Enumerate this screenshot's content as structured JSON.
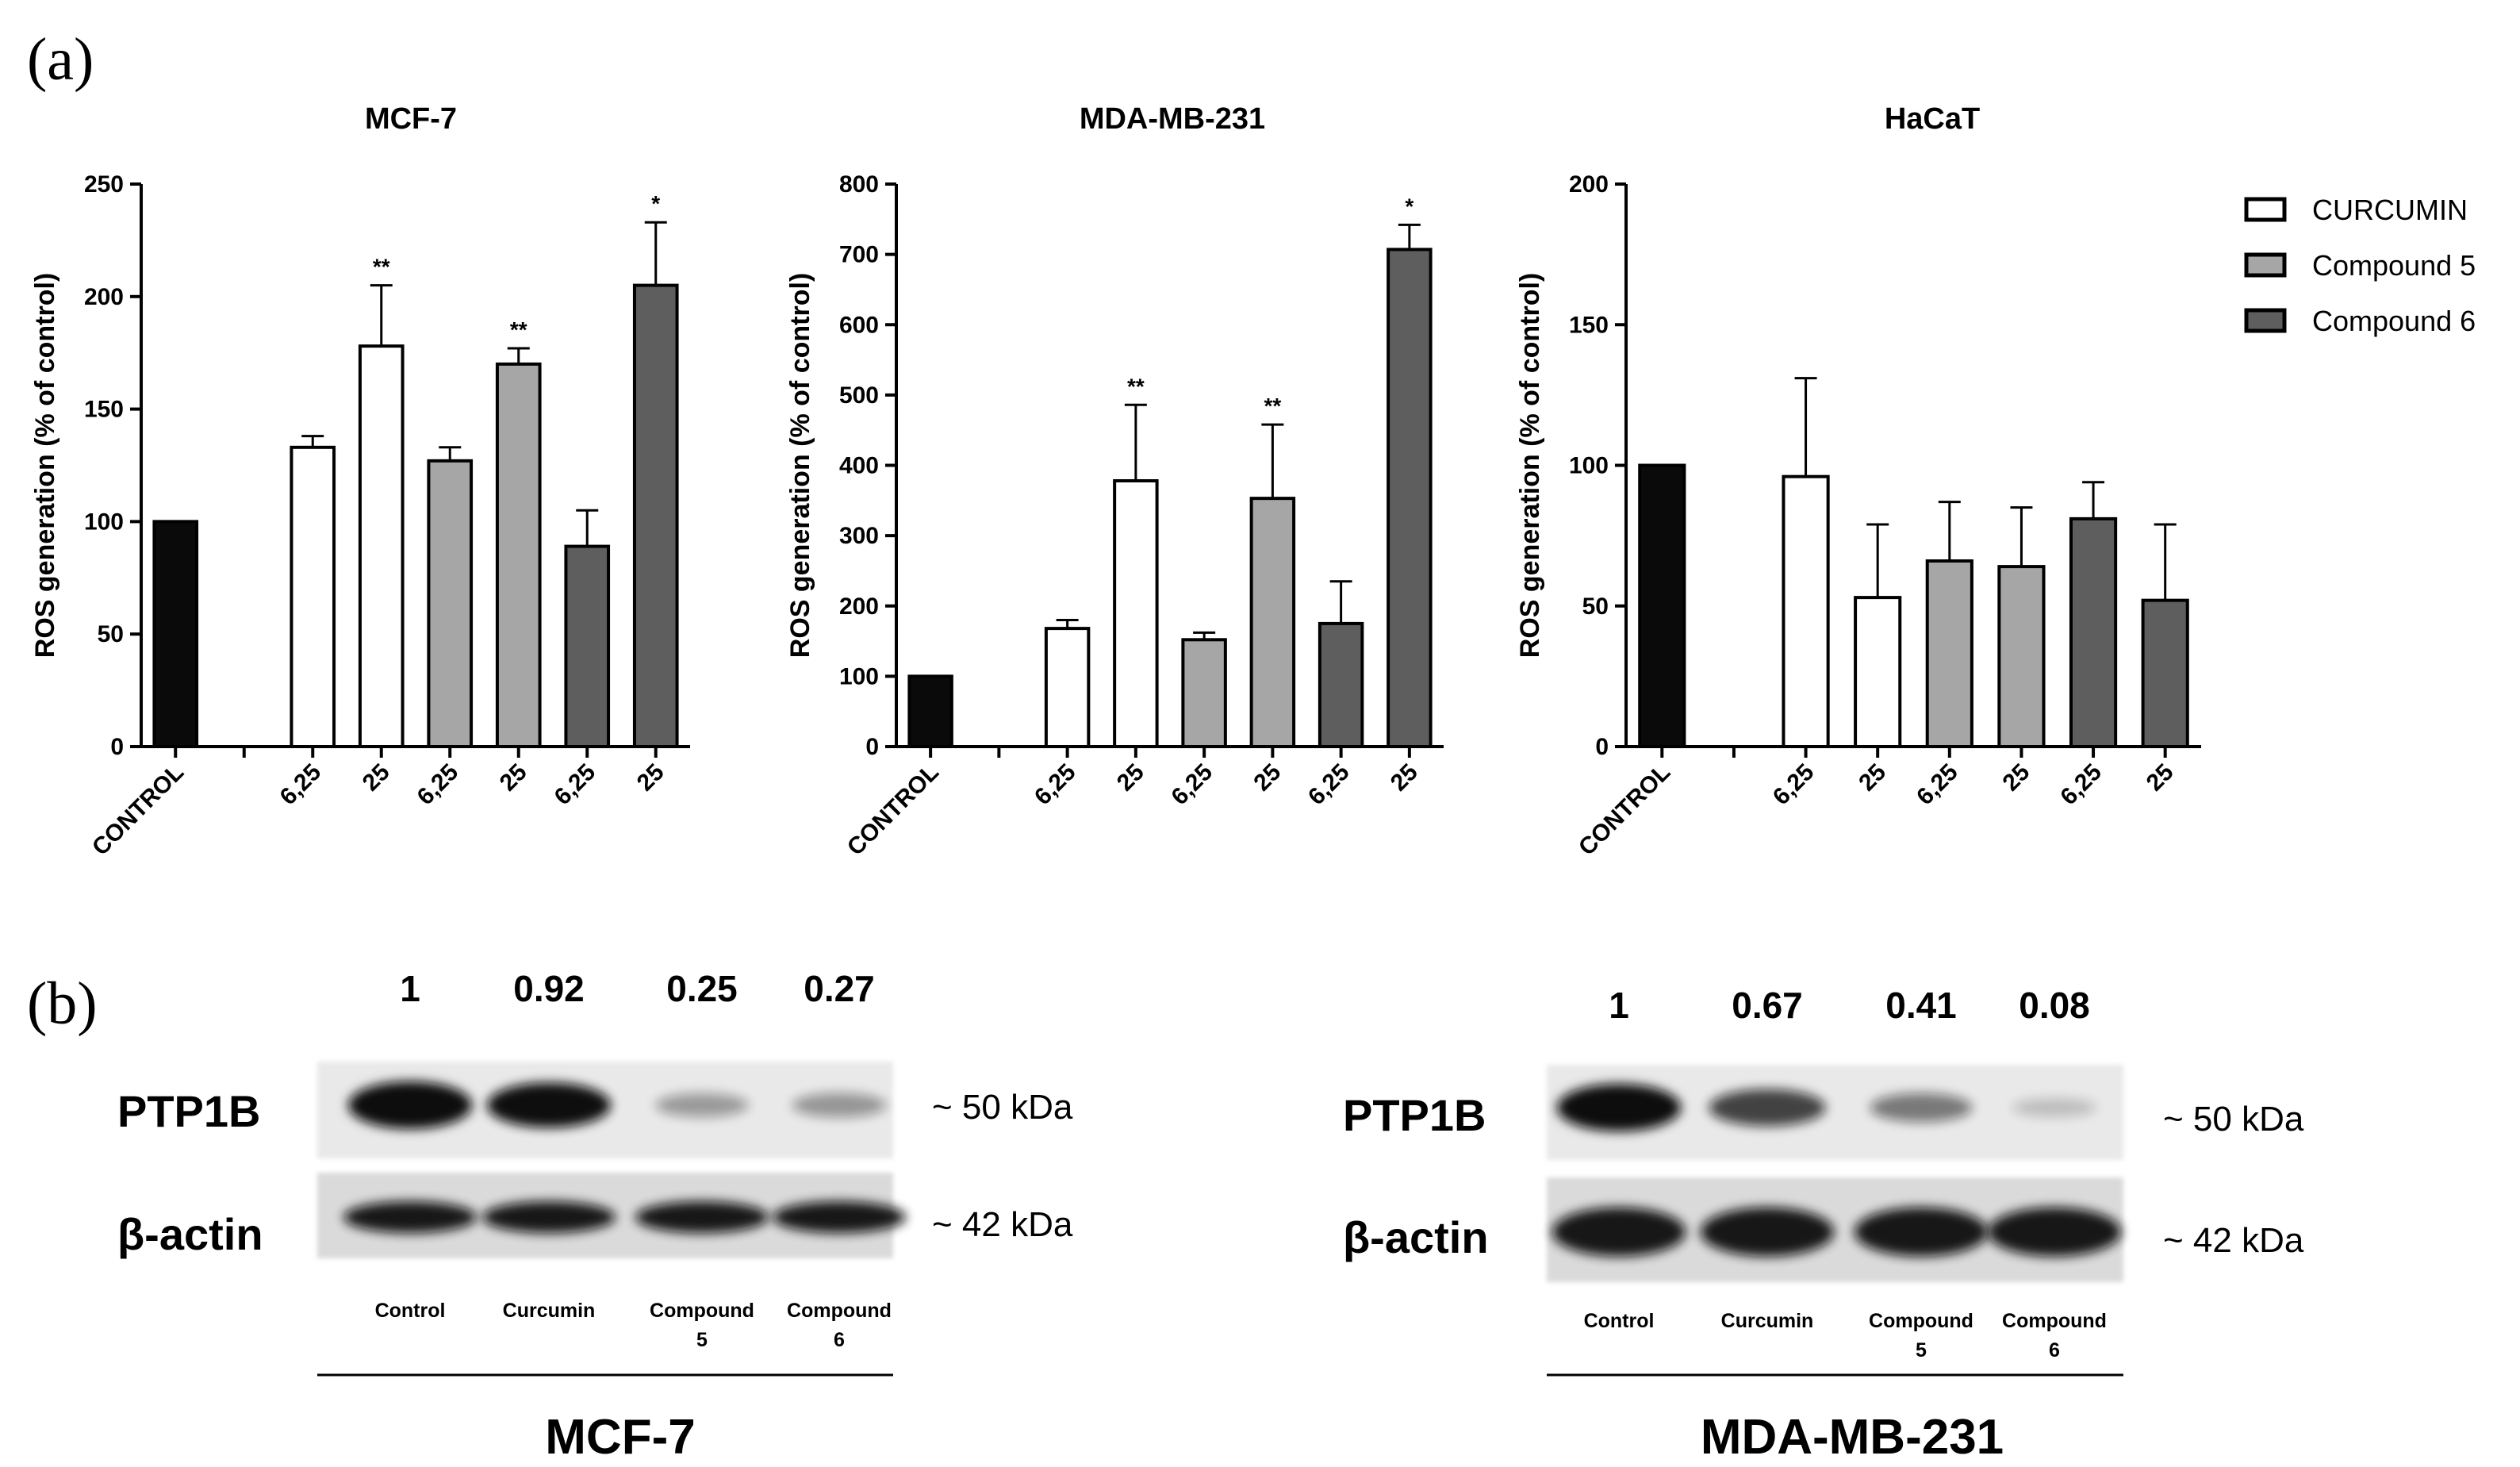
{
  "panel_a_label": "(a)",
  "panel_b_label": "(b)",
  "chart_data": [
    {
      "type": "bar",
      "title": "MCF-7",
      "ylabel": "ROS generation (% of control)",
      "ylim": [
        0,
        250
      ],
      "yticks": [
        0,
        50,
        100,
        150,
        200,
        250
      ],
      "categories": [
        "CONTROL",
        "",
        "6,25",
        "25",
        "6,25",
        "25",
        "6,25",
        "25"
      ],
      "series_index": [
        0,
        null,
        1,
        1,
        2,
        2,
        3,
        3
      ],
      "values": [
        100,
        null,
        133,
        178,
        127,
        170,
        89,
        205
      ],
      "errors": [
        0,
        null,
        5,
        27,
        6,
        7,
        16,
        28
      ],
      "annotations": [
        "",
        "",
        "",
        "**",
        "",
        "**",
        "",
        "*"
      ]
    },
    {
      "type": "bar",
      "title": "MDA-MB-231",
      "ylabel": "ROS generation (% of control)",
      "ylim": [
        0,
        800
      ],
      "yticks": [
        0,
        100,
        200,
        300,
        400,
        500,
        600,
        700,
        800
      ],
      "categories": [
        "CONTROL",
        "",
        "6,25",
        "25",
        "6,25",
        "25",
        "6,25",
        "25"
      ],
      "series_index": [
        0,
        null,
        1,
        1,
        2,
        2,
        3,
        3
      ],
      "values": [
        100,
        null,
        168,
        378,
        152,
        353,
        175,
        707
      ],
      "errors": [
        0,
        null,
        12,
        108,
        10,
        105,
        60,
        35
      ],
      "annotations": [
        "",
        "",
        "",
        "**",
        "",
        "**",
        "",
        "*"
      ]
    },
    {
      "type": "bar",
      "title": "HaCaT",
      "ylabel": "ROS generation (% of control)",
      "ylim": [
        0,
        200
      ],
      "yticks": [
        0,
        50,
        100,
        150,
        200
      ],
      "categories": [
        "CONTROL",
        "",
        "6,25",
        "25",
        "6,25",
        "25",
        "6,25",
        "25"
      ],
      "series_index": [
        0,
        null,
        1,
        1,
        2,
        2,
        3,
        3
      ],
      "values": [
        100,
        null,
        96,
        53,
        66,
        64,
        81,
        52
      ],
      "errors": [
        0,
        null,
        35,
        26,
        21,
        21,
        13,
        27
      ],
      "annotations": [
        "",
        "",
        "",
        "",
        "",
        "",
        "",
        ""
      ]
    }
  ],
  "series_colors": [
    "#0a0a0a",
    "#ffffff",
    "#a6a6a6",
    "#5e5e5e"
  ],
  "legend": [
    {
      "name": "CURCUMIN",
      "color": "#ffffff"
    },
    {
      "name": "Compound 5",
      "color": "#a6a6a6"
    },
    {
      "name": "Compound 6",
      "color": "#5e5e5e"
    }
  ],
  "blots": [
    {
      "title": "MCF-7",
      "values": [
        "1",
        "0.92",
        "0.25",
        "0.27"
      ],
      "ptp1b_label": "PTP1B",
      "actin_label": "β-actin",
      "ptp1b_kda": "~ 50 kDa",
      "actin_kda": "~ 42 kDa",
      "lanes": [
        [
          "Control"
        ],
        [
          "Curcumin"
        ],
        [
          "Compound",
          "5"
        ],
        [
          "Compound",
          "6"
        ]
      ],
      "ptp1b_intensity": [
        1,
        0.92,
        0.25,
        0.27
      ],
      "actin_intensity": [
        1,
        1,
        1,
        1
      ]
    },
    {
      "title": "MDA-MB-231",
      "values": [
        "1",
        "0.67",
        "0.41",
        "0.08"
      ],
      "ptp1b_label": "PTP1B",
      "actin_label": "β-actin",
      "ptp1b_kda": "~ 50 kDa",
      "actin_kda": "~ 42 kDa",
      "lanes": [
        [
          "Control"
        ],
        [
          "Curcumin"
        ],
        [
          "Compound",
          "5"
        ],
        [
          "Compound",
          "6"
        ]
      ],
      "ptp1b_intensity": [
        1,
        0.67,
        0.41,
        0.08
      ],
      "actin_intensity": [
        1,
        1,
        1,
        1
      ]
    }
  ]
}
